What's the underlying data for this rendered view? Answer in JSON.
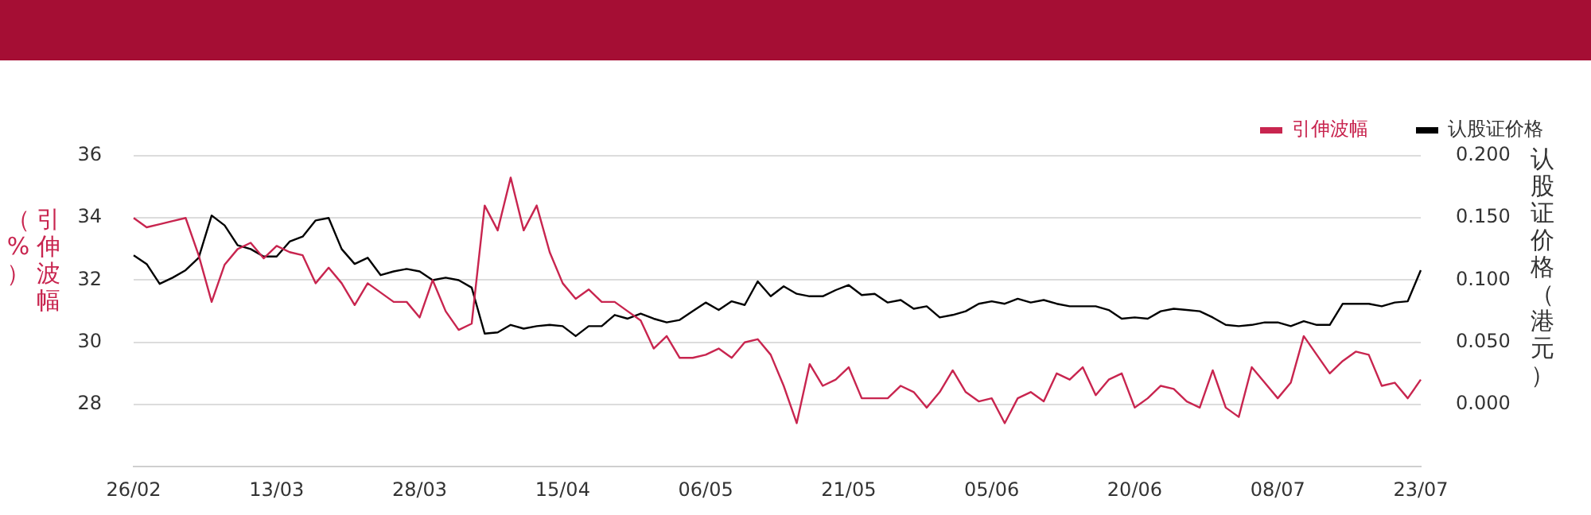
{
  "chart_data": {
    "type": "line",
    "categories": [
      "26/02",
      null,
      null,
      null,
      null,
      null,
      null,
      null,
      null,
      null,
      null,
      "13/03",
      null,
      null,
      null,
      null,
      null,
      null,
      null,
      null,
      null,
      null,
      "28/03",
      null,
      null,
      null,
      null,
      null,
      null,
      null,
      null,
      null,
      null,
      "15/04",
      null,
      null,
      null,
      null,
      null,
      null,
      null,
      null,
      null,
      null,
      "06/05",
      null,
      null,
      null,
      null,
      null,
      null,
      null,
      null,
      null,
      null,
      "21/05",
      null,
      null,
      null,
      null,
      null,
      null,
      null,
      null,
      null,
      null,
      "05/06",
      null,
      null,
      null,
      null,
      null,
      null,
      null,
      null,
      null,
      null,
      "20/06",
      null,
      null,
      null,
      null,
      null,
      null,
      null,
      null,
      null,
      null,
      "08/07",
      null,
      null,
      null,
      null,
      null,
      null,
      null,
      null,
      null,
      null,
      "23/07"
    ],
    "series": [
      {
        "name": "引伸波幅",
        "color": "#c8254f",
        "axis": "y",
        "values": [
          34.0,
          33.7,
          33.8,
          33.9,
          34.0,
          32.8,
          31.3,
          32.5,
          33.0,
          33.2,
          32.7,
          33.1,
          32.9,
          32.8,
          31.9,
          32.4,
          31.9,
          31.2,
          31.9,
          31.6,
          31.3,
          31.3,
          30.8,
          32.0,
          31.0,
          30.4,
          30.6,
          34.4,
          33.6,
          35.3,
          33.6,
          34.4,
          32.9,
          31.9,
          31.4,
          31.7,
          31.3,
          31.3,
          31.0,
          30.7,
          29.8,
          30.2,
          29.5,
          29.5,
          29.6,
          29.8,
          29.5,
          30.0,
          30.1,
          29.6,
          28.6,
          27.4,
          29.3,
          28.6,
          28.8,
          29.2,
          28.2,
          28.2,
          28.2,
          28.6,
          28.4,
          27.9,
          28.4,
          29.1,
          28.4,
          28.1,
          28.2,
          27.4,
          28.2,
          28.4,
          28.1,
          29.0,
          28.8,
          29.2,
          28.3,
          28.8,
          29.0,
          27.9,
          28.2,
          28.6,
          28.5,
          28.1,
          27.9,
          29.1,
          27.9,
          27.6,
          29.2,
          28.7,
          28.2,
          28.7,
          30.2,
          29.6,
          29.0,
          29.4,
          29.7,
          29.6,
          28.6,
          28.7,
          28.2,
          28.8
        ]
      },
      {
        "name": "认股证价格",
        "color": "#000000",
        "axis": "y2",
        "values": [
          0.12,
          0.113,
          0.097,
          0.102,
          0.108,
          0.118,
          0.152,
          0.144,
          0.128,
          0.125,
          0.119,
          0.119,
          0.131,
          0.135,
          0.148,
          0.15,
          0.125,
          0.113,
          0.118,
          0.104,
          0.107,
          0.109,
          0.107,
          0.1,
          0.102,
          0.1,
          0.094,
          0.057,
          0.058,
          0.064,
          0.061,
          0.063,
          0.064,
          0.063,
          0.055,
          0.063,
          0.063,
          0.072,
          0.069,
          0.073,
          0.069,
          0.066,
          0.068,
          0.075,
          0.082,
          0.076,
          0.083,
          0.08,
          0.099,
          0.087,
          0.095,
          0.089,
          0.087,
          0.087,
          0.092,
          0.096,
          0.088,
          0.089,
          0.082,
          0.084,
          0.077,
          0.079,
          0.07,
          0.072,
          0.075,
          0.081,
          0.083,
          0.081,
          0.085,
          0.082,
          0.084,
          0.081,
          0.079,
          0.079,
          0.079,
          0.076,
          0.069,
          0.07,
          0.069,
          0.075,
          0.077,
          0.076,
          0.075,
          0.07,
          0.064,
          0.063,
          0.064,
          0.066,
          0.066,
          0.063,
          0.067,
          0.064,
          0.064,
          0.081,
          0.081,
          0.081,
          0.079,
          0.082,
          0.083,
          0.108
        ]
      }
    ],
    "ylabel": "引伸波幅（%）",
    "y2label": "认股证价格（港元）",
    "ylim": [
      26,
      36
    ],
    "yticks": [
      28,
      30,
      32,
      34,
      36
    ],
    "y2lim": [
      -0.05,
      0.2
    ],
    "y2ticks": [
      {
        "value": 0,
        "label": "0.000"
      },
      {
        "value": 0.05,
        "label": "0.050"
      },
      {
        "value": 0.1,
        "label": "0.100"
      },
      {
        "value": 0.15,
        "label": "0.150"
      },
      {
        "value": 0.2,
        "label": "0.200"
      }
    ],
    "grid": "y",
    "legend": "top right"
  }
}
